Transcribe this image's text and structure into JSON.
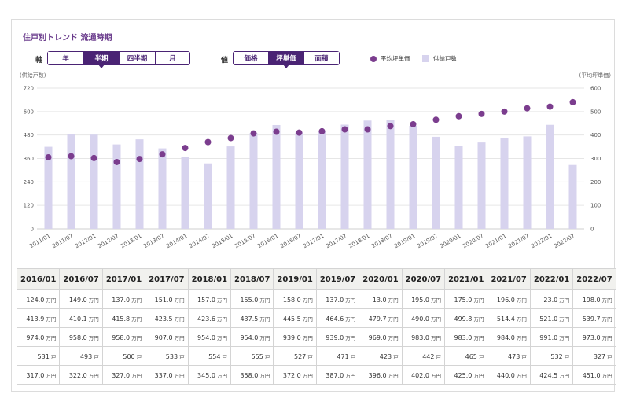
{
  "header": {
    "title": "住戸別トレンド 流通時期"
  },
  "controls": {
    "axis_label": "軸",
    "axis_options": [
      "年",
      "半期",
      "四半期",
      "月"
    ],
    "axis_selected": "半期",
    "value_label": "値",
    "value_options": [
      "価格",
      "坪単価",
      "面積"
    ],
    "value_selected": "坪単価"
  },
  "legend": {
    "line_label": "平均坪単価",
    "bar_label": "供給戸数"
  },
  "colors": {
    "accent": "#4a2374",
    "dot": "#7b3d8e",
    "bar": "#d7d3ee",
    "grid": "#e6e6e6"
  },
  "chart_data": {
    "type": "bar",
    "title": "住戸別トレンド 流通時期",
    "categories": [
      "2011/01",
      "2011/07",
      "2012/01",
      "2012/07",
      "2013/01",
      "2013/07",
      "2014/01",
      "2014/07",
      "2015/01",
      "2015/07",
      "2016/01",
      "2016/07",
      "2017/01",
      "2017/07",
      "2018/01",
      "2018/07",
      "2019/01",
      "2019/07",
      "2020/01",
      "2020/07",
      "2021/01",
      "2021/07",
      "2022/01",
      "2022/07"
    ],
    "ylabel_left": "(供給戸数)",
    "ylabel_right": "(平均坪単価)",
    "y_left": {
      "min": 0,
      "max": 720,
      "ticks": [
        0,
        120,
        240,
        360,
        480,
        600,
        720
      ]
    },
    "y_right": {
      "min": 0,
      "max": 600,
      "ticks": [
        0,
        100,
        200,
        300,
        400,
        500,
        600
      ]
    },
    "grid": true,
    "legend_position": "top-right",
    "series": [
      {
        "name": "供給戸数",
        "type": "bar",
        "axis": "left",
        "values": [
          420,
          485,
          482,
          432,
          458,
          412,
          366,
          335,
          422,
          490,
          531,
          493,
          500,
          533,
          554,
          555,
          527,
          471,
          423,
          442,
          465,
          473,
          532,
          327
        ]
      },
      {
        "name": "平均坪単価",
        "type": "scatter",
        "axis": "right",
        "values": [
          305,
          310,
          302,
          285,
          298,
          318,
          345,
          370,
          387,
          407,
          414,
          410,
          416,
          424,
          424,
          438,
          446,
          465,
          480,
          490,
          500,
          514,
          521,
          540
        ]
      }
    ]
  },
  "table": {
    "headers": [
      "2016/01",
      "2016/07",
      "2017/01",
      "2017/07",
      "2018/01",
      "2018/07",
      "2019/01",
      "2019/07",
      "2020/01",
      "2020/07",
      "2021/01",
      "2021/07",
      "2022/01",
      "2022/07"
    ],
    "rows": [
      {
        "values": [
          "124.0",
          "149.0",
          "137.0",
          "151.0",
          "157.0",
          "155.0",
          "158.0",
          "137.0",
          "13.0",
          "195.0",
          "175.0",
          "196.0",
          "23.0",
          "198.0"
        ],
        "unit": "万円"
      },
      {
        "values": [
          "413.9",
          "410.1",
          "415.8",
          "423.5",
          "423.6",
          "437.5",
          "445.5",
          "464.6",
          "479.7",
          "490.0",
          "499.8",
          "514.4",
          "521.0",
          "539.7"
        ],
        "unit": "万円"
      },
      {
        "values": [
          "974.0",
          "958.0",
          "958.0",
          "907.0",
          "954.0",
          "954.0",
          "939.0",
          "939.0",
          "969.0",
          "983.0",
          "983.0",
          "984.0",
          "991.0",
          "973.0"
        ],
        "unit": "万円"
      },
      {
        "values": [
          "531",
          "493",
          "500",
          "533",
          "554",
          "555",
          "527",
          "471",
          "423",
          "442",
          "465",
          "473",
          "532",
          "327"
        ],
        "unit": "戸"
      },
      {
        "values": [
          "317.0",
          "322.0",
          "327.0",
          "337.0",
          "345.0",
          "358.0",
          "372.0",
          "387.0",
          "396.0",
          "402.0",
          "425.0",
          "440.0",
          "424.5",
          "451.0"
        ],
        "unit": "万円"
      }
    ]
  }
}
